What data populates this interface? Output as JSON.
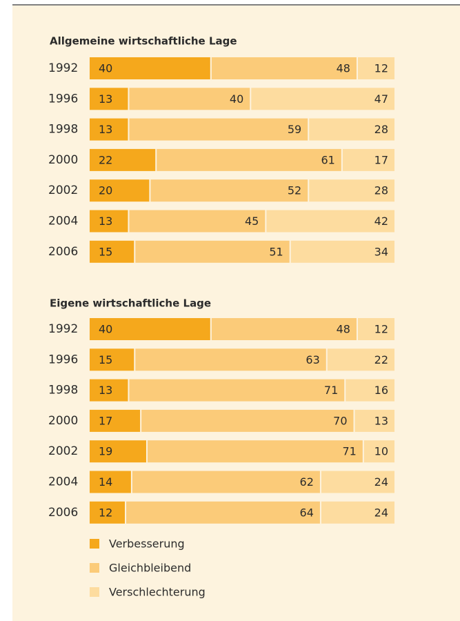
{
  "chart_data": [
    {
      "type": "bar",
      "orientation": "horizontal",
      "stacked": true,
      "title": "Allgemeine wirtschaftliche Lage",
      "categories": [
        "1992",
        "1996",
        "1998",
        "2000",
        "2002",
        "2004",
        "2006"
      ],
      "xlim": [
        0,
        100
      ],
      "series": [
        {
          "color": "#f5a81c",
          "values": [
            40,
            13,
            13,
            22,
            20,
            13,
            15
          ]
        },
        {
          "color": "#fbcb79",
          "values": [
            48,
            40,
            59,
            61,
            52,
            45,
            51
          ]
        },
        {
          "color": "#fddc9f",
          "values": [
            12,
            47,
            28,
            17,
            28,
            42,
            34
          ]
        }
      ]
    },
    {
      "type": "bar",
      "orientation": "horizontal",
      "stacked": true,
      "title": "Eigene wirtschaftliche Lage",
      "categories": [
        "1992",
        "1996",
        "1998",
        "2000",
        "2002",
        "2004",
        "2006"
      ],
      "xlim": [
        0,
        100
      ],
      "legend": "bottom-left",
      "series": [
        {
          "name": "Verbesserung",
          "color": "#f5a81c",
          "values": [
            40,
            15,
            13,
            17,
            19,
            14,
            12
          ]
        },
        {
          "name": "Gleichbleibend",
          "color": "#fbcb79",
          "values": [
            48,
            63,
            71,
            70,
            71,
            62,
            64
          ]
        },
        {
          "name": "Verschlechterung",
          "color": "#fddc9f",
          "values": [
            12,
            22,
            16,
            13,
            10,
            24,
            24
          ]
        }
      ]
    }
  ]
}
